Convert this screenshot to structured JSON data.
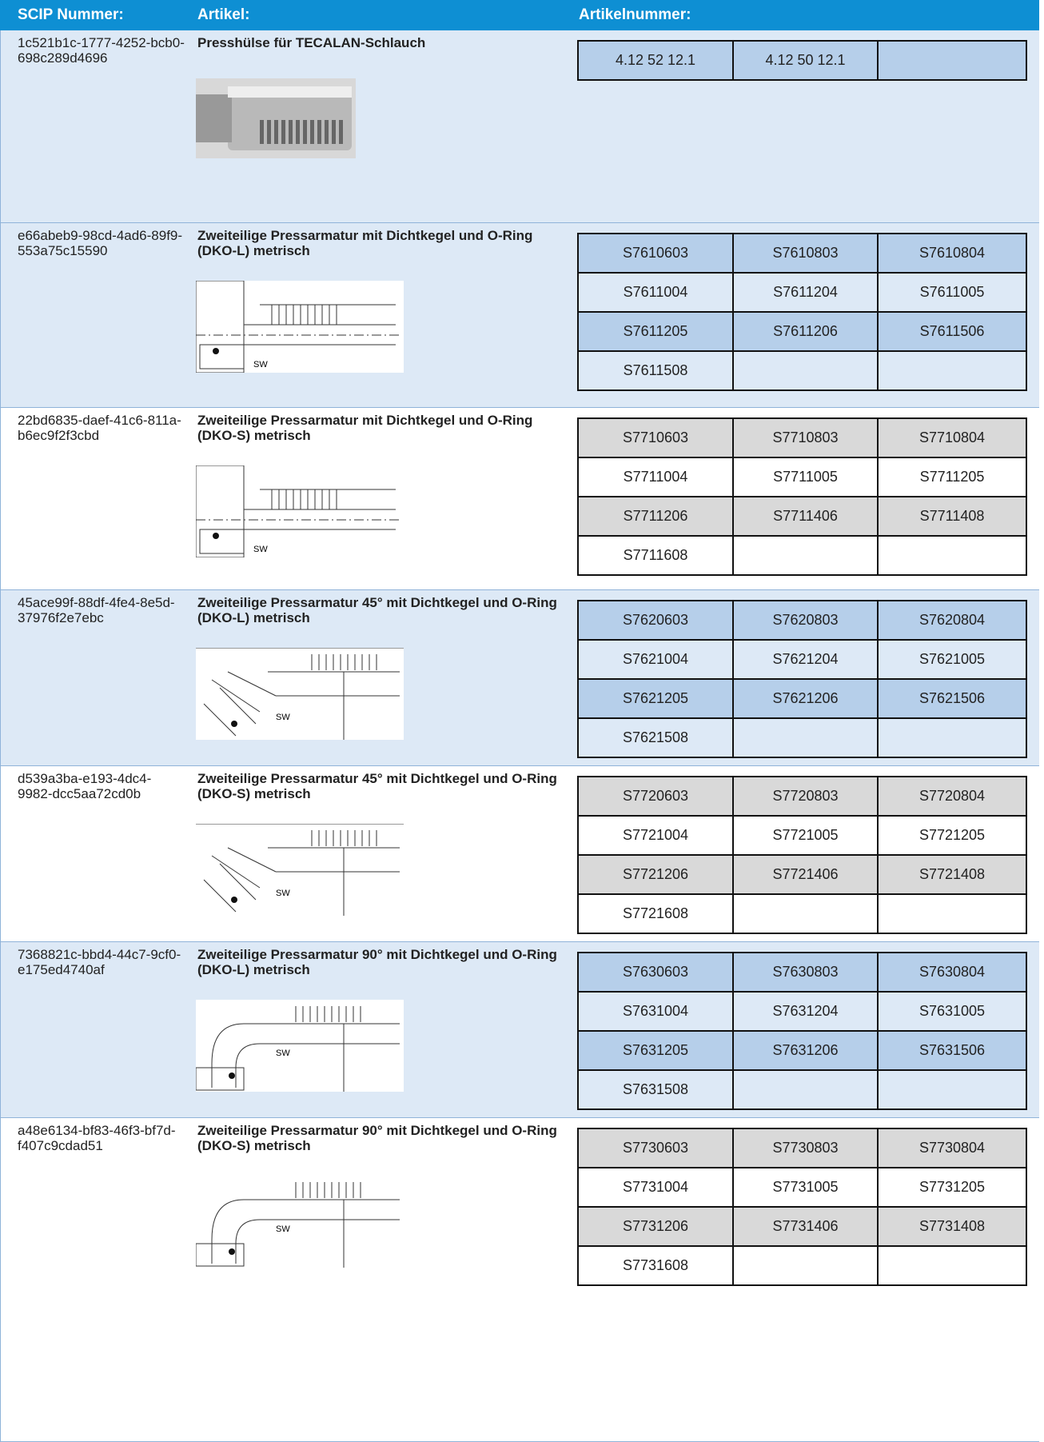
{
  "header": {
    "scip": "SCIP Nummer:",
    "artikel": "Artikel:",
    "artikelnummer": "Artikelnummer:"
  },
  "rows": [
    {
      "scip": "1c521b1c-1777-4252-bcb0-698c289d4696",
      "artikel": "Presshülse für TECALAN-Schlauch",
      "nummern": [
        "4.12 52 12.1",
        "4.12 50 12.1"
      ]
    },
    {
      "scip": "e66abeb9-98cd-4ad6-89f9-553a75c15590",
      "artikel": "Zweiteilige Pressarmatur mit Dichtkegel und O-Ring (DKO-L) metrisch",
      "nummern": [
        "S7610603",
        "S7610803",
        "S7610804",
        "S7611004",
        "S7611204",
        "S7611005",
        "S7611205",
        "S7611206",
        "S7611506",
        "S7611508"
      ]
    },
    {
      "scip": "22bd6835-daef-41c6-811a-b6ec9f2f3cbd",
      "artikel": "Zweiteilige Pressarmatur mit Dichtkegel und O-Ring (DKO-S) metrisch",
      "nummern": [
        "S7710603",
        "S7710803",
        "S7710804",
        "S7711004",
        "S7711005",
        "S7711205",
        "S7711206",
        "S7711406",
        "S7711408",
        "S7711608"
      ]
    },
    {
      "scip": "45ace99f-88df-4fe4-8e5d-37976f2e7ebc",
      "artikel": "Zweiteilige Pressarmatur 45° mit Dichtkegel und O-Ring (DKO-L) metrisch",
      "nummern": [
        "S7620603",
        "S7620803",
        "S7620804",
        "S7621004",
        "S7621204",
        "S7621005",
        "S7621205",
        "S7621206",
        "S7621506",
        "S7621508"
      ]
    },
    {
      "scip": "d539a3ba-e193-4dc4-9982-dcc5aa72cd0b",
      "artikel": "Zweiteilige Pressarmatur 45° mit Dichtkegel und O-Ring (DKO-S) metrisch",
      "nummern": [
        "S7720603",
        "S7720803",
        "S7720804",
        "S7721004",
        "S7721005",
        "S7721205",
        "S7721206",
        "S7721406",
        "S7721408",
        "S7721608"
      ]
    },
    {
      "scip": "7368821c-bbd4-44c7-9cf0-e175ed4740af",
      "artikel": "Zweiteilige Pressarmatur 90° mit Dichtkegel und O-Ring (DKO-L) metrisch",
      "nummern": [
        "S7630603",
        "S7630803",
        "S7630804",
        "S7631004",
        "S7631204",
        "S7631005",
        "S7631205",
        "S7631206",
        "S7631506",
        "S7631508"
      ]
    },
    {
      "scip": "a48e6134-bf83-46f3-bf7d-f407c9cdad51",
      "artikel": "Zweiteilige Pressarmatur 90° mit Dichtkegel und O-Ring (DKO-S) metrisch",
      "nummern": [
        "S7730603",
        "S7730803",
        "S7730804",
        "S7731004",
        "S7731005",
        "S7731205",
        "S7731206",
        "S7731406",
        "S7731408",
        "S7731608"
      ]
    }
  ]
}
